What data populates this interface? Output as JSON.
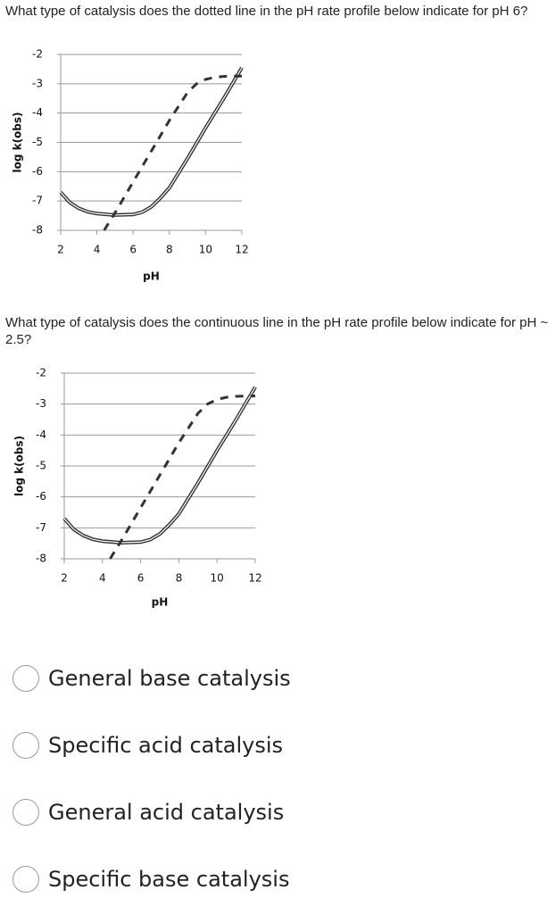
{
  "questions": [
    {
      "text": "What type of catalysis does the dotted line in the pH rate profile below indicate for pH 6?"
    },
    {
      "text": "What type of catalysis does the continuous line in the pH rate profile below indicate for pH ~ 2.5?"
    }
  ],
  "options": [
    "General base catalysis",
    "Specific acid catalysis",
    "General acid catalysis",
    "Specific base catalysis"
  ],
  "chart_data": [
    {
      "type": "line",
      "xlabel": "pH",
      "ylabel": "log k(obs)",
      "xlim": [
        2,
        12
      ],
      "ylim": [
        -8,
        -2
      ],
      "xticks": [
        2,
        4,
        6,
        8,
        10,
        12
      ],
      "yticks": [
        -2,
        -3,
        -4,
        -5,
        -6,
        -7,
        -8
      ],
      "grid": true,
      "series": [
        {
          "style": "solid",
          "color": "#333333",
          "x": [
            2,
            2.5,
            3,
            3.5,
            4,
            5,
            6,
            6.5,
            7,
            7.5,
            8,
            9,
            10,
            11,
            12
          ],
          "values": [
            -6.7,
            -7.05,
            -7.25,
            -7.37,
            -7.43,
            -7.48,
            -7.46,
            -7.38,
            -7.2,
            -6.9,
            -6.55,
            -5.55,
            -4.5,
            -3.5,
            -2.45
          ]
        },
        {
          "style": "dashed",
          "color": "#333333",
          "x": [
            4.4,
            5,
            6,
            7,
            8,
            9,
            9.5,
            10,
            10.5,
            11,
            11.5,
            12
          ],
          "values": [
            -8,
            -7.4,
            -6.35,
            -5.3,
            -4.25,
            -3.3,
            -3.0,
            -2.85,
            -2.78,
            -2.75,
            -2.74,
            -2.74
          ]
        }
      ]
    },
    {
      "type": "line",
      "xlabel": "pH",
      "ylabel": "log k(obs)",
      "xlim": [
        2,
        12
      ],
      "ylim": [
        -8,
        -2
      ],
      "xticks": [
        2,
        4,
        6,
        8,
        10,
        12
      ],
      "yticks": [
        -2,
        -3,
        -4,
        -5,
        -6,
        -7,
        -8
      ],
      "grid": true,
      "series": [
        {
          "style": "solid",
          "color": "#333333",
          "x": [
            2,
            2.5,
            3,
            3.5,
            4,
            5,
            6,
            6.5,
            7,
            7.5,
            8,
            9,
            10,
            11,
            12
          ],
          "values": [
            -6.7,
            -7.05,
            -7.25,
            -7.37,
            -7.43,
            -7.48,
            -7.46,
            -7.38,
            -7.2,
            -6.9,
            -6.55,
            -5.55,
            -4.5,
            -3.5,
            -2.45
          ]
        },
        {
          "style": "dashed",
          "color": "#333333",
          "x": [
            4.4,
            5,
            6,
            7,
            8,
            9,
            9.5,
            10,
            10.5,
            11,
            11.5,
            12
          ],
          "values": [
            -8,
            -7.4,
            -6.35,
            -5.3,
            -4.25,
            -3.3,
            -3.0,
            -2.85,
            -2.78,
            -2.75,
            -2.74,
            -2.74
          ]
        }
      ]
    }
  ]
}
